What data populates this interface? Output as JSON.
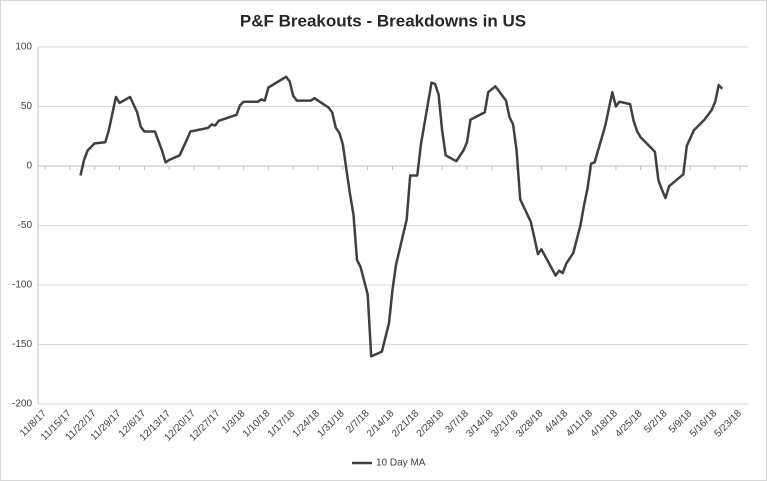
{
  "chart_data": {
    "type": "line",
    "title": "P&F Breakouts - Breakdowns in US",
    "x": [
      "11/18/17",
      "11/19/17",
      "11/20/17",
      "11/22/17",
      "11/25/17",
      "11/26/17",
      "11/28/17",
      "11/29/17",
      "12/2/17",
      "12/4/17",
      "12/5/17",
      "12/6/17",
      "12/9/17",
      "12/11/17",
      "12/12/17",
      "12/13/17",
      "12/16/17",
      "12/18/17",
      "12/19/17",
      "12/24/17",
      "12/25/17",
      "12/26/17",
      "12/27/17",
      "1/1/18",
      "1/2/18",
      "1/3/18",
      "1/7/18",
      "1/8/18",
      "1/9/18",
      "1/10/18",
      "1/15/18",
      "1/16/18",
      "1/17/18",
      "1/18/18",
      "1/22/18",
      "1/23/18",
      "1/27/18",
      "1/28/18",
      "1/29/18",
      "1/30/18",
      "1/31/18",
      "2/1/18",
      "2/2/18",
      "2/3/18",
      "2/4/18",
      "2/5/18",
      "2/7/18",
      "2/8/18",
      "2/11/18",
      "2/12/18",
      "2/13/18",
      "2/14/18",
      "2/15/18",
      "2/18/18",
      "2/19/18",
      "2/21/18",
      "2/22/18",
      "2/25/18",
      "2/26/18",
      "2/27/18",
      "2/28/18",
      "3/1/18",
      "3/4/18",
      "3/6/18",
      "3/7/18",
      "3/8/18",
      "3/12/18",
      "3/13/18",
      "3/15/18",
      "3/18/18",
      "3/19/18",
      "3/20/18",
      "3/21/18",
      "3/22/18",
      "3/25/18",
      "3/26/18",
      "3/27/18",
      "3/28/18",
      "4/1/18",
      "4/2/18",
      "4/3/18",
      "4/4/18",
      "4/6/18",
      "4/8/18",
      "4/9/18",
      "4/10/18",
      "4/11/18",
      "4/12/18",
      "4/15/18",
      "4/17/18",
      "4/18/18",
      "4/19/18",
      "4/22/18",
      "4/23/18",
      "4/24/18",
      "4/25/18",
      "4/26/18",
      "4/29/18",
      "4/30/18",
      "5/1/18",
      "5/2/18",
      "5/3/18",
      "5/7/18",
      "5/8/18",
      "5/10/18",
      "5/13/18",
      "5/15/18",
      "5/16/18",
      "5/17/18",
      "5/18/18"
    ],
    "series": [
      {
        "name": "10 Day MA",
        "color": "#404040",
        "values": [
          -8,
          5,
          13,
          19,
          20,
          30,
          58,
          53,
          58,
          45,
          33,
          29,
          29,
          13,
          3,
          5,
          9,
          22,
          29,
          32,
          35,
          34,
          38,
          43,
          51,
          54,
          54,
          56,
          55,
          66,
          75,
          71,
          59,
          55,
          55,
          57,
          49,
          45,
          32,
          28,
          18,
          -3,
          -23,
          -41,
          -79,
          -85,
          -108,
          -160,
          -156,
          -144,
          -132,
          -104,
          -83,
          -45,
          -8,
          -8,
          18,
          70,
          69,
          60,
          30,
          9,
          4,
          13,
          20,
          39,
          45,
          62,
          67,
          55,
          41,
          35,
          13,
          -28,
          -47,
          -60,
          -74,
          -70,
          -92,
          -88,
          -90,
          -82,
          -73,
          -50,
          -33,
          -19,
          2,
          3,
          34,
          62,
          50,
          54,
          52,
          38,
          29,
          24,
          21,
          12,
          -12,
          -20,
          -27,
          -17,
          -7,
          17,
          30,
          39,
          47,
          54,
          68,
          65
        ]
      }
    ],
    "xlim": [
      "11/8/17",
      "5/23/18"
    ],
    "xticks": [
      "11/8/17",
      "11/15/17",
      "11/22/17",
      "11/29/17",
      "12/6/17",
      "12/13/17",
      "12/20/17",
      "12/27/17",
      "1/3/18",
      "1/10/18",
      "1/17/18",
      "1/24/18",
      "1/31/18",
      "2/7/18",
      "2/14/18",
      "2/21/18",
      "2/28/18",
      "3/7/18",
      "3/14/18",
      "3/21/18",
      "3/28/18",
      "4/4/18",
      "4/11/18",
      "4/18/18",
      "4/25/18",
      "5/2/18",
      "5/9/18",
      "5/16/18",
      "5/23/18"
    ],
    "ylim": [
      -200,
      100
    ],
    "yticks": [
      100,
      50,
      0,
      -50,
      -100,
      -150,
      -200
    ],
    "grid": true,
    "legend": "bottom"
  }
}
